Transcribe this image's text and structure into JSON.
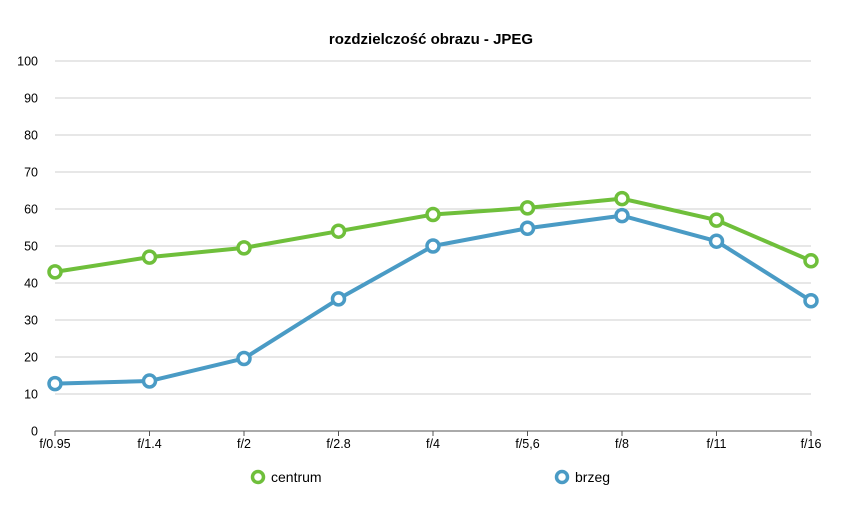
{
  "chart_data": {
    "type": "line",
    "title": "rozdzielczość obrazu - JPEG",
    "xlabel": "",
    "ylabel": "",
    "categories": [
      "f/0.95",
      "f/1.4",
      "f/2",
      "f/2.8",
      "f/4",
      "f/5,6",
      "f/8",
      "f/11",
      "f/16"
    ],
    "ylim": [
      0,
      100
    ],
    "yticks": [
      "0",
      "10",
      "20",
      "30",
      "40",
      "50",
      "60",
      "70",
      "80",
      "90",
      "100"
    ],
    "grid": true,
    "legend_position": "bottom",
    "series": [
      {
        "name": "centrum",
        "color": "#6fbf3b",
        "values": [
          43,
          47,
          49.5,
          54,
          58.5,
          60.3,
          62.8,
          57,
          46
        ]
      },
      {
        "name": "brzeg",
        "color": "#4a9bc5",
        "values": [
          12.8,
          13.5,
          19.6,
          35.7,
          50,
          54.8,
          58.2,
          51.3,
          35.2
        ]
      }
    ]
  }
}
